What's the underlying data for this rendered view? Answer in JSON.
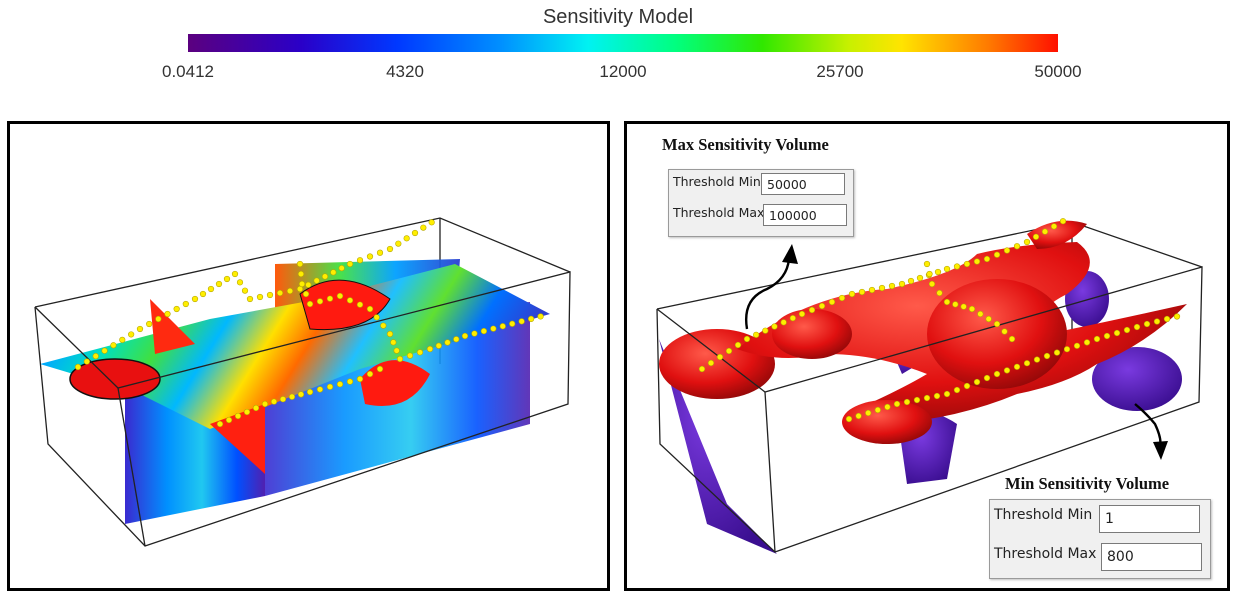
{
  "colorbar": {
    "title": "Sensitivity Model",
    "ticks": [
      "0.0412",
      "4320",
      "12000",
      "25700",
      "50000"
    ]
  },
  "max_volume": {
    "heading": "Max Sensitivity Volume",
    "threshold_min_label": "Threshold Min",
    "threshold_min_value": "50000",
    "threshold_max_label": "Threshold Max",
    "threshold_max_value": "100000"
  },
  "min_volume": {
    "heading": "Min Sensitivity Volume",
    "threshold_min_label": "Threshold Min",
    "threshold_min_value": "1",
    "threshold_max_label": "Threshold Max",
    "threshold_max_value": "800"
  },
  "colors": {
    "red_volume": "#e01010",
    "purple_volume": "#5a18b8",
    "survey_points": "#ffee00"
  }
}
